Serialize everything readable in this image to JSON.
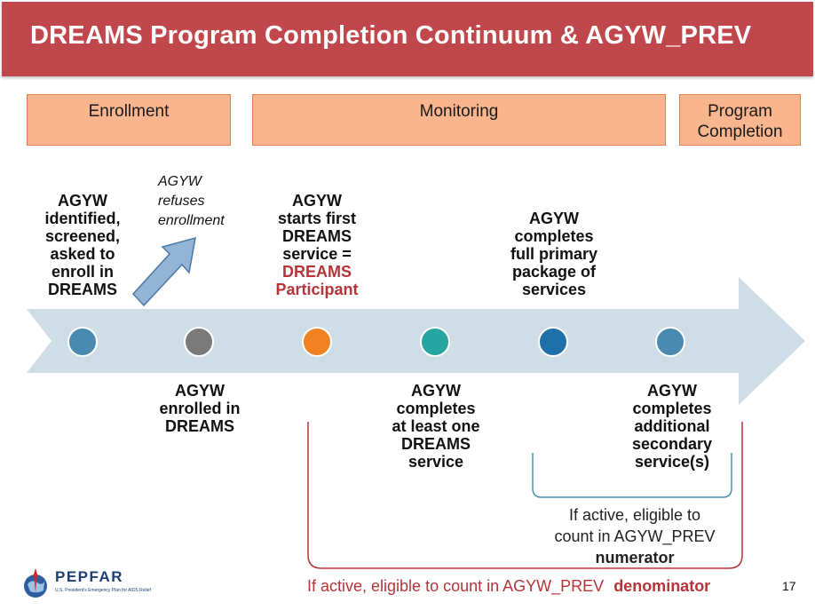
{
  "title": "DREAMS Program Completion Continuum & AGYW_PREV",
  "phases": {
    "enrollment": "Enrollment",
    "monitoring": "Monitoring",
    "completion_line1": "Program",
    "completion_line2": "Completion"
  },
  "refuses_note": {
    "line1": "AGYW",
    "line2": "refuses",
    "line3": "enrollment"
  },
  "steps_above": {
    "identified": [
      "AGYW",
      "identified,",
      "screened,",
      "asked to",
      "enroll in",
      "DREAMS"
    ],
    "first_service": [
      "AGYW",
      "starts first",
      "DREAMS",
      "service ="
    ],
    "participant": [
      "DREAMS",
      "Participant"
    ],
    "primary_package": [
      "AGYW",
      "completes",
      "full primary",
      "package of",
      "services"
    ]
  },
  "steps_below": {
    "enrolled": [
      "AGYW",
      "enrolled in",
      "DREAMS"
    ],
    "one_service": [
      "AGYW",
      "completes",
      "at least one",
      "DREAMS",
      "service"
    ],
    "secondary": [
      "AGYW",
      "completes",
      "additional",
      "secondary",
      "service(s)"
    ]
  },
  "milestone_colors": [
    "#4a8ab0",
    "#7a7a7a",
    "#f08224",
    "#25a6a1",
    "#1f6fa8",
    "#4a8ab0"
  ],
  "numerator_note": {
    "line1": "If active, eligible to",
    "line2": "count in AGYW_PREV",
    "line3": "numerator"
  },
  "denominator_note": {
    "prefix": "If active, eligible to count in AGYW_PREV",
    "bold": "denominator"
  },
  "logo": {
    "name": "PEPFAR",
    "subtitle": "U.S. President's Emergency Plan for AIDS Relief"
  },
  "page_number": "17",
  "colors": {
    "title_bar": "#c0474b",
    "phase_fill": "#f9b58e",
    "arrow": "#cfdde7",
    "denominator_bracket": "#b5343a",
    "numerator_bracket": "#4a90b0"
  }
}
